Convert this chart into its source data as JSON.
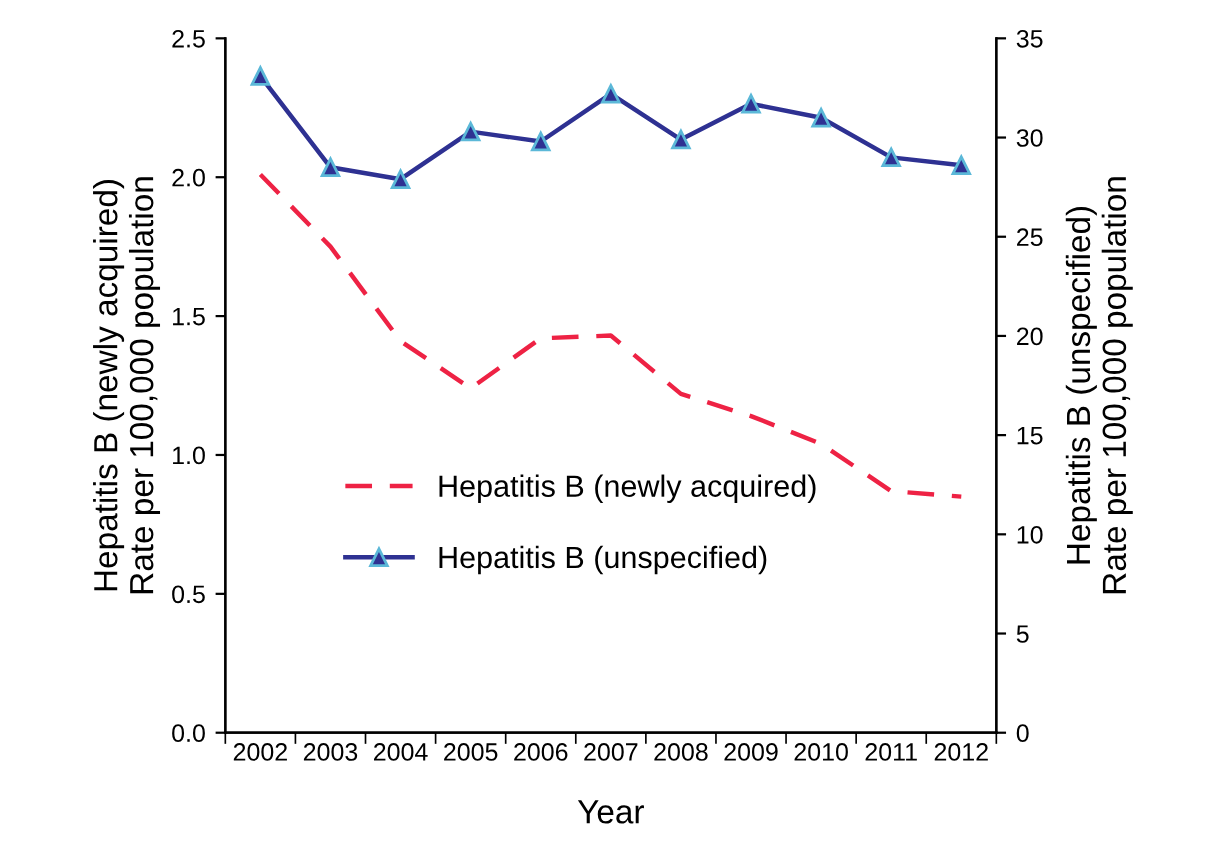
{
  "chart_data": {
    "type": "line",
    "xlabel": "Year",
    "ylabel": "Hepatitis B (newly acquired)\nRate per 100,000 population",
    "y2label": "Hepatitis B (unspecified)\nRate per 100,000 population",
    "categories": [
      "2002",
      "2003",
      "2004",
      "2005",
      "2006",
      "2007",
      "2008",
      "2009",
      "2010",
      "2011",
      "2012"
    ],
    "series": [
      {
        "name": "Hepatitis B (newly acquired)",
        "color": "#ee2244",
        "line_style": "dashed",
        "marker": "none",
        "values": [
          2.01,
          1.75,
          1.41,
          1.24,
          1.42,
          1.43,
          1.22,
          1.14,
          1.04,
          0.87,
          0.85
        ]
      },
      {
        "name": "Hepatitis B (unspecified)",
        "color": "#2e3192",
        "line_style": "solid",
        "marker": "triangle",
        "axis": "y2",
        "values": [
          33.1,
          28.5,
          27.9,
          30.3,
          29.8,
          32.2,
          29.9,
          31.7,
          31.0,
          29.0,
          28.6
        ]
      }
    ],
    "ylim": [
      0,
      2.5
    ],
    "yticks": [
      {
        "value": 0,
        "label": "0.0"
      },
      0.5,
      {
        "value": 1,
        "label": "1.0"
      },
      1.5,
      {
        "value": 2,
        "label": "2.0"
      },
      2.5
    ],
    "y2lim": [
      0,
      35
    ],
    "y2ticks": [
      0,
      5,
      10,
      15,
      20,
      25,
      30,
      35
    ],
    "legend": "left",
    "grid": false
  }
}
